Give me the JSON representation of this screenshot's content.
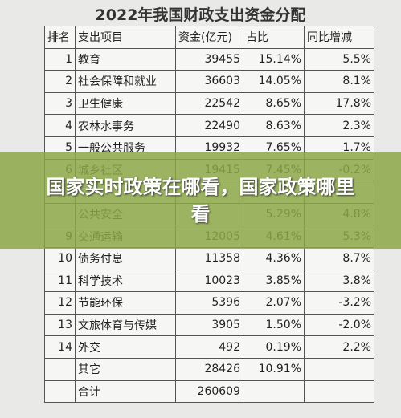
{
  "title": "2022年我国财政支出资金分配",
  "table": {
    "header": [
      "排名",
      "支出项目",
      "资金(亿元)",
      "占比",
      "同比增减"
    ],
    "rows": [
      [
        "1",
        "教育",
        "39455",
        "15.14%",
        "5.5%"
      ],
      [
        "2",
        "社会保障和就业",
        "36603",
        "14.05%",
        "8.1%"
      ],
      [
        "3",
        "卫生健康",
        "22542",
        "8.65%",
        "17.8%"
      ],
      [
        "4",
        "农林水事务",
        "22490",
        "8.63%",
        "2.3%"
      ],
      [
        "5",
        "一般公共服务",
        "19932",
        "7.65%",
        "1.7%"
      ],
      [
        "6",
        "城乡社区",
        "19415",
        "7.45%",
        "-0.2%"
      ],
      [
        null,
        null,
        null,
        null,
        null
      ],
      [
        null,
        "公共安全",
        null,
        "5.29%",
        "4.8%"
      ],
      [
        "9",
        "交通运输",
        "12005",
        "4.61%",
        "5.3%"
      ],
      [
        "10",
        "债务付息",
        "11358",
        "4.36%",
        "8.7%"
      ],
      [
        "11",
        "科学技术",
        "10023",
        "3.85%",
        "3.8%"
      ],
      [
        "12",
        "节能环保",
        "5396",
        "2.07%",
        "-3.2%"
      ],
      [
        "13",
        "文旅体育与传媒",
        "3905",
        "1.50%",
        "-2.0%"
      ],
      [
        "14",
        "外交",
        "492",
        "0.19%",
        "2.2%"
      ],
      [
        null,
        "其它",
        "28426",
        "10.91%",
        null
      ],
      [
        null,
        "合计",
        "260609",
        null,
        null
      ]
    ]
  },
  "banner": "国家实时政策在哪看，国家政策哪里看"
}
